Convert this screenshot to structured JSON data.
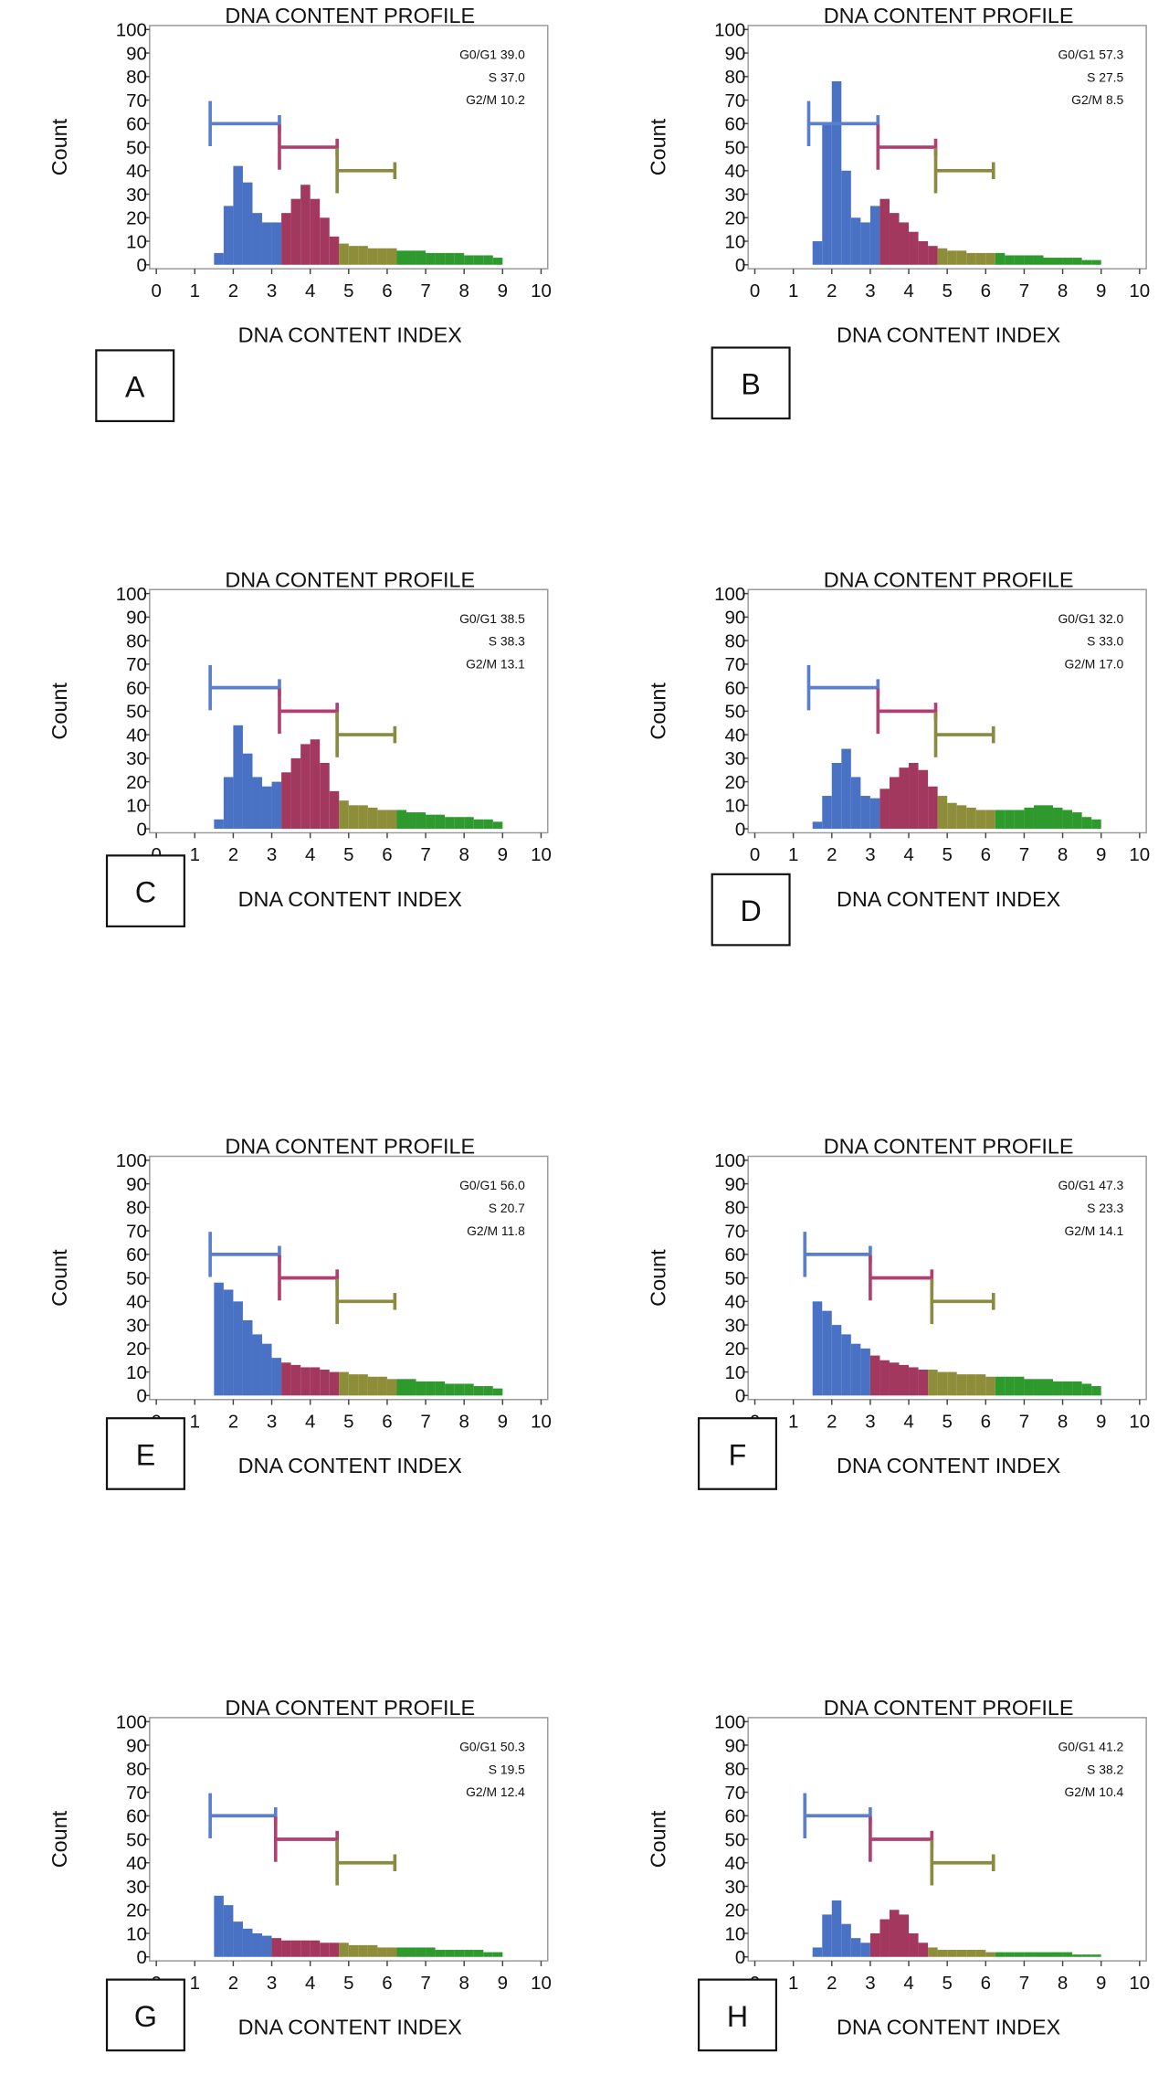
{
  "chart_data": [
    {
      "type": "histogram",
      "title": "DNA CONTENT PROFILE",
      "x_label": "DNA CONTENT INDEX",
      "y_label": "Count",
      "panel_label": "A",
      "xlim": [
        0,
        10
      ],
      "ylim": [
        0,
        100
      ],
      "xticks": [
        0,
        1,
        2,
        3,
        4,
        5,
        6,
        7,
        8,
        9,
        10
      ],
      "yticks": [
        0,
        10,
        20,
        30,
        40,
        50,
        60,
        70,
        80,
        90,
        100
      ],
      "bins": [
        1.5,
        1.75,
        2,
        2.25,
        2.5,
        2.75,
        3,
        3.25,
        3.5,
        3.75,
        4,
        4.25,
        4.5,
        4.75,
        5,
        5.25,
        5.5,
        5.75,
        6,
        6.25,
        6.5,
        6.75,
        7,
        7.25,
        7.5,
        7.75,
        8,
        8.25,
        8.5,
        8.75,
        9
      ],
      "values": [
        5,
        25,
        42,
        35,
        22,
        18,
        18,
        22,
        28,
        34,
        28,
        20,
        12,
        9,
        8,
        8,
        7,
        7,
        7,
        6,
        6,
        6,
        5,
        5,
        5,
        5,
        4,
        4,
        4,
        3
      ],
      "other_color": "#2e9a2e",
      "gates": [
        {
          "label": "G0/G1",
          "stat": "39.0",
          "range": [
            1.4,
            3.2
          ],
          "y": 60,
          "color": "#5b7fd0",
          "fill": "#4a72c4"
        },
        {
          "label": "S",
          "stat": "37.0",
          "range": [
            3.2,
            4.7
          ],
          "y": 50,
          "color": "#b04070",
          "fill": "#a3385f"
        },
        {
          "label": "G2/M",
          "stat": "10.2",
          "range": [
            4.7,
            6.2
          ],
          "y": 40,
          "color": "#8a8a40",
          "fill": "#8d8d3a"
        }
      ]
    },
    {
      "type": "histogram",
      "title": "DNA CONTENT PROFILE",
      "x_label": "DNA CONTENT INDEX",
      "y_label": "Count",
      "panel_label": "B",
      "xlim": [
        0,
        10
      ],
      "ylim": [
        0,
        100
      ],
      "xticks": [
        0,
        1,
        2,
        3,
        4,
        5,
        6,
        7,
        8,
        9,
        10
      ],
      "yticks": [
        0,
        10,
        20,
        30,
        40,
        50,
        60,
        70,
        80,
        90,
        100
      ],
      "bins": [
        1.5,
        1.75,
        2,
        2.25,
        2.5,
        2.75,
        3,
        3.25,
        3.5,
        3.75,
        4,
        4.25,
        4.5,
        4.75,
        5,
        5.25,
        5.5,
        5.75,
        6,
        6.25,
        6.5,
        6.75,
        7,
        7.25,
        7.5,
        7.75,
        8,
        8.25,
        8.5,
        8.75,
        9
      ],
      "values": [
        10,
        60,
        78,
        40,
        20,
        18,
        25,
        28,
        22,
        18,
        14,
        10,
        8,
        7,
        6,
        6,
        5,
        5,
        5,
        5,
        4,
        4,
        4,
        4,
        3,
        3,
        3,
        3,
        2,
        2
      ],
      "other_color": "#2e9a2e",
      "gates": [
        {
          "label": "G0/G1",
          "stat": "57.3",
          "range": [
            1.4,
            3.2
          ],
          "y": 60,
          "color": "#5b7fd0",
          "fill": "#4a72c4"
        },
        {
          "label": "S",
          "stat": "27.5",
          "range": [
            3.2,
            4.7
          ],
          "y": 50,
          "color": "#b04070",
          "fill": "#a3385f"
        },
        {
          "label": "G2/M",
          "stat": "8.5",
          "range": [
            4.7,
            6.2
          ],
          "y": 40,
          "color": "#8a8a40",
          "fill": "#8d8d3a"
        }
      ]
    },
    {
      "type": "histogram",
      "title": "DNA CONTENT PROFILE",
      "x_label": "DNA CONTENT INDEX",
      "y_label": "Count",
      "panel_label": "C",
      "xlim": [
        0,
        10
      ],
      "ylim": [
        0,
        100
      ],
      "xticks": [
        0,
        1,
        2,
        3,
        4,
        5,
        6,
        7,
        8,
        9,
        10
      ],
      "yticks": [
        0,
        10,
        20,
        30,
        40,
        50,
        60,
        70,
        80,
        90,
        100
      ],
      "bins": [
        1.5,
        1.75,
        2,
        2.25,
        2.5,
        2.75,
        3,
        3.25,
        3.5,
        3.75,
        4,
        4.25,
        4.5,
        4.75,
        5,
        5.25,
        5.5,
        5.75,
        6,
        6.25,
        6.5,
        6.75,
        7,
        7.25,
        7.5,
        7.75,
        8,
        8.25,
        8.5,
        8.75,
        9
      ],
      "values": [
        4,
        22,
        44,
        32,
        22,
        18,
        20,
        24,
        30,
        36,
        38,
        28,
        16,
        12,
        10,
        10,
        9,
        8,
        8,
        8,
        7,
        7,
        6,
        6,
        5,
        5,
        5,
        4,
        4,
        3
      ],
      "other_color": "#2e9a2e",
      "gates": [
        {
          "label": "G0/G1",
          "stat": "38.5",
          "range": [
            1.4,
            3.2
          ],
          "y": 60,
          "color": "#5b7fd0",
          "fill": "#4a72c4"
        },
        {
          "label": "S",
          "stat": "38.3",
          "range": [
            3.2,
            4.7
          ],
          "y": 50,
          "color": "#b04070",
          "fill": "#a3385f"
        },
        {
          "label": "G2/M",
          "stat": "13.1",
          "range": [
            4.7,
            6.2
          ],
          "y": 40,
          "color": "#8a8a40",
          "fill": "#8d8d3a"
        }
      ]
    },
    {
      "type": "histogram",
      "title": "DNA CONTENT PROFILE",
      "x_label": "DNA CONTENT INDEX",
      "y_label": "Count",
      "panel_label": "D",
      "xlim": [
        0,
        10
      ],
      "ylim": [
        0,
        100
      ],
      "xticks": [
        0,
        1,
        2,
        3,
        4,
        5,
        6,
        7,
        8,
        9,
        10
      ],
      "yticks": [
        0,
        10,
        20,
        30,
        40,
        50,
        60,
        70,
        80,
        90,
        100
      ],
      "bins": [
        1.5,
        1.75,
        2,
        2.25,
        2.5,
        2.75,
        3,
        3.25,
        3.5,
        3.75,
        4,
        4.25,
        4.5,
        4.75,
        5,
        5.25,
        5.5,
        5.75,
        6,
        6.25,
        6.5,
        6.75,
        7,
        7.25,
        7.5,
        7.75,
        8,
        8.25,
        8.5,
        8.75,
        9
      ],
      "values": [
        3,
        14,
        28,
        34,
        22,
        14,
        13,
        17,
        22,
        26,
        28,
        25,
        18,
        14,
        11,
        10,
        9,
        8,
        8,
        8,
        8,
        8,
        9,
        10,
        10,
        9,
        8,
        7,
        5,
        4
      ],
      "other_color": "#2e9a2e",
      "gates": [
        {
          "label": "G0/G1",
          "stat": "32.0",
          "range": [
            1.4,
            3.2
          ],
          "y": 60,
          "color": "#5b7fd0",
          "fill": "#4a72c4"
        },
        {
          "label": "S",
          "stat": "33.0",
          "range": [
            3.2,
            4.7
          ],
          "y": 50,
          "color": "#b04070",
          "fill": "#a3385f"
        },
        {
          "label": "G2/M",
          "stat": "17.0",
          "range": [
            4.7,
            6.2
          ],
          "y": 40,
          "color": "#8a8a40",
          "fill": "#8d8d3a"
        }
      ]
    },
    {
      "type": "histogram",
      "title": "DNA CONTENT PROFILE",
      "x_label": "DNA CONTENT INDEX",
      "y_label": "Count",
      "panel_label": "E",
      "xlim": [
        0,
        10
      ],
      "ylim": [
        0,
        100
      ],
      "xticks": [
        0,
        1,
        2,
        3,
        4,
        5,
        6,
        7,
        8,
        9,
        10
      ],
      "yticks": [
        0,
        10,
        20,
        30,
        40,
        50,
        60,
        70,
        80,
        90,
        100
      ],
      "bins": [
        1.5,
        1.75,
        2,
        2.25,
        2.5,
        2.75,
        3,
        3.25,
        3.5,
        3.75,
        4,
        4.25,
        4.5,
        4.75,
        5,
        5.25,
        5.5,
        5.75,
        6,
        6.25,
        6.5,
        6.75,
        7,
        7.25,
        7.5,
        7.75,
        8,
        8.25,
        8.5,
        8.75,
        9
      ],
      "values": [
        48,
        45,
        40,
        32,
        26,
        22,
        16,
        14,
        13,
        12,
        12,
        11,
        10,
        10,
        9,
        9,
        8,
        8,
        7,
        7,
        7,
        6,
        6,
        6,
        5,
        5,
        5,
        4,
        4,
        3
      ],
      "other_color": "#2e9a2e",
      "gates": [
        {
          "label": "G0/G1",
          "stat": "56.0",
          "range": [
            1.4,
            3.2
          ],
          "y": 60,
          "color": "#5b7fd0",
          "fill": "#4a72c4"
        },
        {
          "label": "S",
          "stat": "20.7",
          "range": [
            3.2,
            4.7
          ],
          "y": 50,
          "color": "#b04070",
          "fill": "#a3385f"
        },
        {
          "label": "G2/M",
          "stat": "11.8",
          "range": [
            4.7,
            6.2
          ],
          "y": 40,
          "color": "#8a8a40",
          "fill": "#8d8d3a"
        }
      ]
    },
    {
      "type": "histogram",
      "title": "DNA CONTENT PROFILE",
      "x_label": "DNA CONTENT INDEX",
      "y_label": "Count",
      "panel_label": "F",
      "xlim": [
        0,
        10
      ],
      "ylim": [
        0,
        100
      ],
      "xticks": [
        0,
        1,
        2,
        3,
        4,
        5,
        6,
        7,
        8,
        9,
        10
      ],
      "yticks": [
        0,
        10,
        20,
        30,
        40,
        50,
        60,
        70,
        80,
        90,
        100
      ],
      "bins": [
        1.5,
        1.75,
        2,
        2.25,
        2.5,
        2.75,
        3,
        3.25,
        3.5,
        3.75,
        4,
        4.25,
        4.5,
        4.75,
        5,
        5.25,
        5.5,
        5.75,
        6,
        6.25,
        6.5,
        6.75,
        7,
        7.25,
        7.5,
        7.75,
        8,
        8.25,
        8.5,
        8.75,
        9
      ],
      "values": [
        40,
        36,
        30,
        26,
        22,
        20,
        17,
        15,
        14,
        13,
        12,
        11,
        11,
        10,
        10,
        9,
        9,
        9,
        8,
        8,
        8,
        8,
        7,
        7,
        7,
        6,
        6,
        6,
        5,
        4
      ],
      "other_color": "#2e9a2e",
      "gates": [
        {
          "label": "G0/G1",
          "stat": "47.3",
          "range": [
            1.3,
            3.0
          ],
          "y": 60,
          "color": "#5b7fd0",
          "fill": "#4a72c4"
        },
        {
          "label": "S",
          "stat": "23.3",
          "range": [
            3.0,
            4.6
          ],
          "y": 50,
          "color": "#b04070",
          "fill": "#a3385f"
        },
        {
          "label": "G2/M",
          "stat": "14.1",
          "range": [
            4.6,
            6.2
          ],
          "y": 40,
          "color": "#8a8a40",
          "fill": "#8d8d3a"
        }
      ]
    },
    {
      "type": "histogram",
      "title": "DNA CONTENT PROFILE",
      "x_label": "DNA CONTENT INDEX",
      "y_label": "Count",
      "panel_label": "G",
      "xlim": [
        0,
        10
      ],
      "ylim": [
        0,
        100
      ],
      "xticks": [
        0,
        1,
        2,
        3,
        4,
        5,
        6,
        7,
        8,
        9,
        10
      ],
      "yticks": [
        0,
        10,
        20,
        30,
        40,
        50,
        60,
        70,
        80,
        90,
        100
      ],
      "bins": [
        1.5,
        1.75,
        2,
        2.25,
        2.5,
        2.75,
        3,
        3.25,
        3.5,
        3.75,
        4,
        4.25,
        4.5,
        4.75,
        5,
        5.25,
        5.5,
        5.75,
        6,
        6.25,
        6.5,
        6.75,
        7,
        7.25,
        7.5,
        7.75,
        8,
        8.25,
        8.5,
        8.75,
        9
      ],
      "values": [
        26,
        22,
        15,
        12,
        10,
        9,
        8,
        7,
        7,
        7,
        7,
        6,
        6,
        6,
        5,
        5,
        5,
        4,
        4,
        4,
        4,
        4,
        4,
        3,
        3,
        3,
        3,
        3,
        2,
        2
      ],
      "other_color": "#2e9a2e",
      "gates": [
        {
          "label": "G0/G1",
          "stat": "50.3",
          "range": [
            1.4,
            3.1
          ],
          "y": 60,
          "color": "#5b7fd0",
          "fill": "#4a72c4"
        },
        {
          "label": "S",
          "stat": "19.5",
          "range": [
            3.1,
            4.7
          ],
          "y": 50,
          "color": "#b04070",
          "fill": "#a3385f"
        },
        {
          "label": "G2/M",
          "stat": "12.4",
          "range": [
            4.7,
            6.2
          ],
          "y": 40,
          "color": "#8a8a40",
          "fill": "#8d8d3a"
        }
      ]
    },
    {
      "type": "histogram",
      "title": "DNA CONTENT PROFILE",
      "x_label": "DNA CONTENT INDEX",
      "y_label": "Count",
      "panel_label": "H",
      "xlim": [
        0,
        10
      ],
      "ylim": [
        0,
        100
      ],
      "xticks": [
        0,
        1,
        2,
        3,
        4,
        5,
        6,
        7,
        8,
        9,
        10
      ],
      "yticks": [
        0,
        10,
        20,
        30,
        40,
        50,
        60,
        70,
        80,
        90,
        100
      ],
      "bins": [
        1.5,
        1.75,
        2,
        2.25,
        2.5,
        2.75,
        3,
        3.25,
        3.5,
        3.75,
        4,
        4.25,
        4.5,
        4.75,
        5,
        5.25,
        5.5,
        5.75,
        6,
        6.25,
        6.5,
        6.75,
        7,
        7.25,
        7.5,
        7.75,
        8,
        8.25,
        8.5,
        8.75,
        9
      ],
      "values": [
        4,
        18,
        24,
        14,
        8,
        6,
        10,
        16,
        20,
        18,
        10,
        6,
        4,
        3,
        3,
        3,
        3,
        3,
        2,
        2,
        2,
        2,
        2,
        2,
        2,
        2,
        2,
        1,
        1,
        1
      ],
      "other_color": "#2e9a2e",
      "gates": [
        {
          "label": "G0/G1",
          "stat": "41.2",
          "range": [
            1.3,
            3.0
          ],
          "y": 60,
          "color": "#5b7fd0",
          "fill": "#4a72c4"
        },
        {
          "label": "S",
          "stat": "38.2",
          "range": [
            3.0,
            4.6
          ],
          "y": 50,
          "color": "#b04070",
          "fill": "#a3385f"
        },
        {
          "label": "G2/M",
          "stat": "10.4",
          "range": [
            4.6,
            6.2
          ],
          "y": 40,
          "color": "#8a8a40",
          "fill": "#8d8d3a"
        }
      ]
    }
  ]
}
